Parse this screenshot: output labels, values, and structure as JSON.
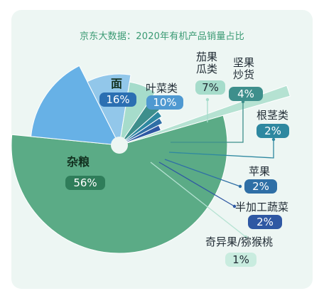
{
  "title": "京东大数据：2020年有机产品销量占比",
  "chart_data": {
    "type": "pie",
    "title": "京东大数据：2020年有机产品销量占比",
    "slices": [
      {
        "label": "杂粮",
        "value": 56,
        "value_label": "56%",
        "color": "#5bab86"
      },
      {
        "label": "面",
        "value": 16,
        "value_label": "16%",
        "color": "#67b1e6"
      },
      {
        "label": "叶菜类",
        "value": 10,
        "value_label": "10%",
        "color": "#92c7ea"
      },
      {
        "label": "茄果瓜类",
        "value": 7,
        "value_label": "7%",
        "color": "#a6dccb"
      },
      {
        "label": "坚果炒货",
        "value": 4,
        "value_label": "4%",
        "color": "#3e8f8c"
      },
      {
        "label": "根茎类",
        "value": 2,
        "value_label": "2%",
        "color": "#2e88a0"
      },
      {
        "label": "苹果",
        "value": 2,
        "value_label": "2%",
        "color": "#2f6fa6"
      },
      {
        "label": "半加工蔬菜",
        "value": 2,
        "value_label": "2%",
        "color": "#2f58a3"
      },
      {
        "label": "奇异果/猕猴桃",
        "value": 1,
        "value_label": "1%",
        "color": "#b5e2d2"
      }
    ]
  },
  "labels": {
    "zaliang": "杂粮",
    "mian": "面",
    "yecai": "叶菜类",
    "qieguo_1": "茄果",
    "qieguo_2": "瓜类",
    "jianguo_1": "坚果",
    "jianguo_2": "炒货",
    "genjing": "根茎类",
    "pingguo": "苹果",
    "banjiagong": "半加工蔬菜",
    "qiyi": "奇异果/猕猴桃"
  },
  "colors": {
    "pill_zaliang": "#2f7d5a",
    "pill_mian": "#2b6fb2",
    "pill_yecai": "#4f99d1",
    "pill_qieguo": "#a6dccb",
    "pill_jianguo": "#3e8f8c",
    "pill_genjing": "#2e88a0",
    "pill_pingguo": "#2f6fa6",
    "pill_banjiagong": "#2f58a3",
    "pill_qiyi": "#c9ecdf"
  }
}
